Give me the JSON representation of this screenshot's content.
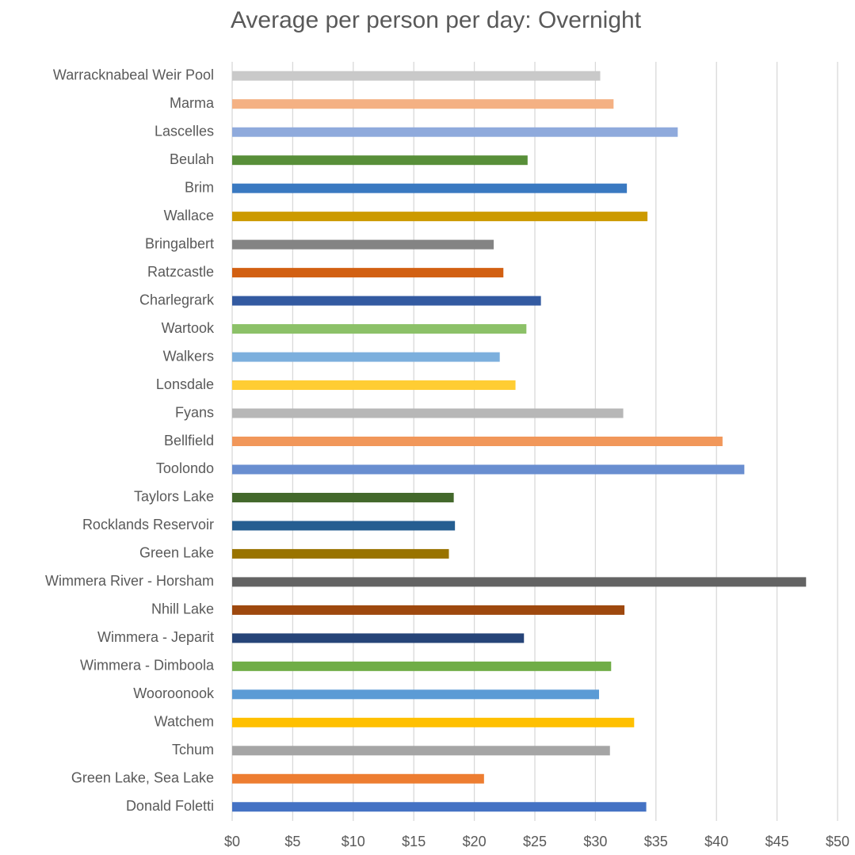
{
  "chart_data": {
    "type": "hbar",
    "title": "Average per person per day: Overnight",
    "categories": [
      "Warracknabeal Weir Pool",
      "Marma",
      "Lascelles",
      "Beulah",
      "Brim",
      "Wallace",
      "Bringalbert",
      "Ratzcastle",
      "Charlegrark",
      "Wartook",
      "Walkers",
      "Lonsdale",
      "Fyans",
      "Bellfield",
      "Toolondo",
      "Taylors Lake",
      "Rocklands Reservoir",
      "Green Lake",
      "Wimmera River - Horsham",
      "Nhill Lake",
      "Wimmera - Jeparit",
      "Wimmera - Dimboola",
      "Wooroonook",
      "Watchem",
      "Tchum",
      "Green Lake, Sea Lake",
      "Donald Foletti"
    ],
    "values": [
      30.4,
      31.5,
      36.8,
      24.4,
      32.6,
      34.3,
      21.6,
      22.4,
      25.5,
      24.3,
      22.1,
      23.4,
      32.3,
      40.5,
      42.3,
      18.3,
      18.4,
      17.9,
      47.4,
      32.4,
      24.1,
      31.3,
      30.3,
      33.2,
      31.2,
      20.8,
      34.2
    ],
    "colors": [
      "#c9c9c9",
      "#f4b183",
      "#8faadc",
      "#588f39",
      "#3a79c1",
      "#cc9a00",
      "#848484",
      "#d26012",
      "#335aa1",
      "#8cc168",
      "#7cafdd",
      "#ffcd33",
      "#b7b7b7",
      "#f1975a",
      "#698ed0",
      "#43682b",
      "#255e91",
      "#997300",
      "#636363",
      "#9e480e",
      "#264478",
      "#70ad47",
      "#5b9bd5",
      "#ffc000",
      "#a5a5a5",
      "#ed7d31",
      "#4472c4"
    ],
    "xlim": [
      0,
      50
    ],
    "xticks": [
      {
        "value": 0,
        "label": "$0"
      },
      {
        "value": 5,
        "label": "$5"
      },
      {
        "value": 10,
        "label": "$10"
      },
      {
        "value": 15,
        "label": "$15"
      },
      {
        "value": 20,
        "label": "$20"
      },
      {
        "value": 25,
        "label": "$25"
      },
      {
        "value": 30,
        "label": "$30"
      },
      {
        "value": 35,
        "label": "$35"
      },
      {
        "value": 40,
        "label": "$40"
      },
      {
        "value": 45,
        "label": "$45"
      },
      {
        "value": 50,
        "label": "$50"
      }
    ],
    "grid": true
  }
}
